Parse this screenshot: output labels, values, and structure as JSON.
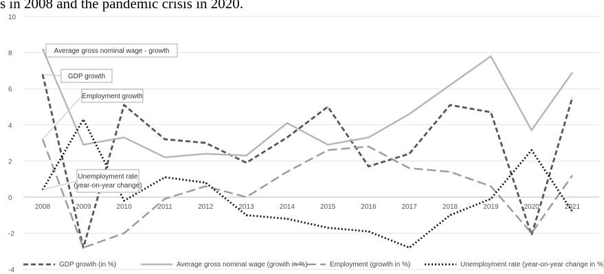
{
  "caption": "s in 2008 and the pandemic crisis in 2020.",
  "chart_data": {
    "type": "line",
    "title": "",
    "xlabel": "",
    "ylabel": "",
    "ylim": [
      -4,
      10
    ],
    "yticks": [
      -4,
      -2,
      0,
      2,
      4,
      6,
      8,
      10
    ],
    "grid": true,
    "legend_position": "bottom",
    "categories": [
      "2008",
      "2009",
      "2010",
      "2011",
      "2012",
      "2013",
      "2014",
      "2015",
      "2016",
      "2017",
      "2018",
      "2019",
      "2020",
      "2021"
    ],
    "series": [
      {
        "name": "GDP growth (in %)",
        "style": "dashed",
        "color": "#555555",
        "values": [
          6.8,
          -2.8,
          5.1,
          3.2,
          3.0,
          1.9,
          3.3,
          5.0,
          1.7,
          2.4,
          5.1,
          4.7,
          -2.1,
          5.5
        ]
      },
      {
        "name": "Average gross nominal wage (growth in %)",
        "style": "solid",
        "color": "#b5b5b5",
        "values": [
          8.2,
          2.9,
          3.3,
          2.2,
          2.4,
          2.3,
          4.1,
          2.9,
          3.3,
          4.6,
          6.2,
          7.8,
          3.7,
          6.9
        ]
      },
      {
        "name": "Employment (growth in %)",
        "style": "longdash",
        "color": "#999999",
        "values": [
          3.2,
          -2.8,
          -2.0,
          -0.1,
          0.6,
          0.0,
          1.4,
          2.6,
          2.8,
          1.6,
          1.4,
          0.6,
          -2.0,
          1.2
        ]
      },
      {
        "name": "Unemployment rate (year-on-year change in %)",
        "style": "dotted",
        "color": "#111111",
        "values": [
          0.4,
          4.3,
          -0.2,
          1.1,
          0.8,
          -1.0,
          -1.2,
          -1.7,
          -1.9,
          -2.8,
          -1.0,
          -0.1,
          2.6,
          -0.8
        ]
      }
    ],
    "annotations": [
      {
        "text": "Average gross nominal wage - growth",
        "series": 1
      },
      {
        "text": "GDP growth",
        "series": 0
      },
      {
        "text": "Employment growth",
        "series": 2
      },
      {
        "text": "Unemployment rate\n(year-on-year change)",
        "series": 3
      }
    ]
  }
}
